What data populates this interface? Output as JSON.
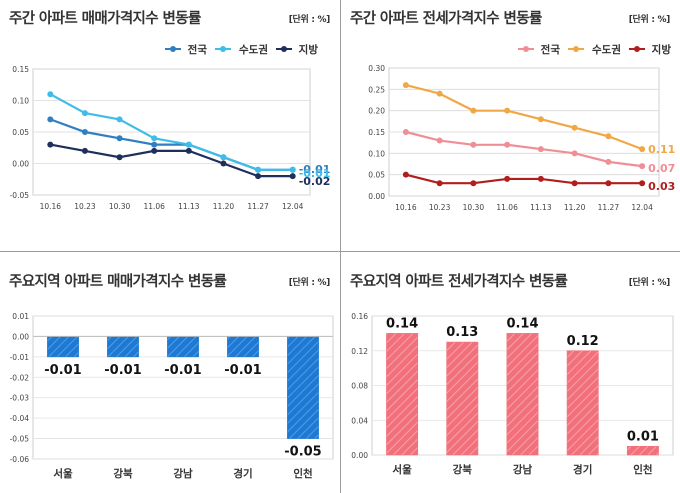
{
  "panels": [
    {
      "title": "주간 아파트 매매가격지수 변동률",
      "unit": "[단위 : %]"
    },
    {
      "title": "주간 아파트 전세가격지수 변동률",
      "unit": "[단위 : %]"
    },
    {
      "title": "주요지역 아파트 매매가격지수 변동률",
      "unit": "[단위 : %]"
    },
    {
      "title": "주요지역 아파트 전세가격지수 변동률",
      "unit": "[단위 : %]"
    }
  ],
  "chart_data": [
    {
      "type": "line",
      "title": "주간 아파트 매매가격지수 변동률",
      "x": [
        "10.16",
        "10.23",
        "10.30",
        "11.06",
        "11.13",
        "11.20",
        "11.27",
        "12.04"
      ],
      "ylim": [
        -0.05,
        0.15
      ],
      "yticks": [
        "0.15",
        "0.10",
        "0.05",
        "0.00",
        "-0.05"
      ],
      "yticks_num": [
        0.15,
        0.1,
        0.05,
        0.0,
        -0.05
      ],
      "series": [
        {
          "name": "전국",
          "color": "#2f7fc1",
          "values": [
            0.07,
            0.05,
            0.04,
            0.03,
            0.03,
            0.01,
            -0.01,
            -0.01
          ]
        },
        {
          "name": "수도권",
          "color": "#3fbde8",
          "values": [
            0.11,
            0.08,
            0.07,
            0.04,
            0.03,
            0.01,
            -0.01,
            -0.01
          ]
        },
        {
          "name": "지방",
          "color": "#1e2f5c",
          "values": [
            0.03,
            0.02,
            0.01,
            0.02,
            0.02,
            0.0,
            -0.02,
            -0.02
          ]
        }
      ],
      "end_labels": [
        "-0.01",
        "-0.01",
        "-0.02"
      ]
    },
    {
      "type": "line",
      "title": "주간 아파트 전세가격지수 변동률",
      "x": [
        "10.16",
        "10.23",
        "10.30",
        "11.06",
        "11.13",
        "11.20",
        "11.27",
        "12.04"
      ],
      "ylim": [
        0,
        0.3
      ],
      "yticks": [
        "0.30",
        "0.25",
        "0.20",
        "0.15",
        "0.10",
        "0.05",
        "0.00"
      ],
      "yticks_num": [
        0.3,
        0.25,
        0.2,
        0.15,
        0.1,
        0.05,
        0.0
      ],
      "series": [
        {
          "name": "전국",
          "color": "#f08e96",
          "values": [
            0.15,
            0.13,
            0.12,
            0.12,
            0.11,
            0.1,
            0.08,
            0.07
          ]
        },
        {
          "name": "수도권",
          "color": "#f0a845",
          "values": [
            0.26,
            0.24,
            0.2,
            0.2,
            0.18,
            0.16,
            0.14,
            0.11
          ]
        },
        {
          "name": "지방",
          "color": "#b01e1e",
          "values": [
            0.05,
            0.03,
            0.03,
            0.04,
            0.04,
            0.03,
            0.03,
            0.03
          ]
        }
      ],
      "end_labels": [
        "0.07",
        "0.11",
        "0.03"
      ]
    },
    {
      "type": "bar",
      "title": "주요지역 아파트 매매가격지수 변동률",
      "categories": [
        "서울",
        "강북",
        "강남",
        "경기",
        "인천"
      ],
      "values": [
        -0.01,
        -0.01,
        -0.01,
        -0.01,
        -0.05
      ],
      "value_labels": [
        "-0.01",
        "-0.01",
        "-0.01",
        "-0.01",
        "-0.05"
      ],
      "ylim": [
        -0.06,
        0.01
      ],
      "yticks": [
        "0.01",
        "0.00",
        "-0.01",
        "-0.02",
        "-0.03",
        "-0.04",
        "-0.05",
        "-0.06"
      ],
      "yticks_num": [
        0.01,
        0.0,
        -0.01,
        -0.02,
        -0.03,
        -0.04,
        -0.05,
        -0.06
      ],
      "color": "#1f78d1"
    },
    {
      "type": "bar",
      "title": "주요지역 아파트 전세가격지수 변동률",
      "categories": [
        "서울",
        "강북",
        "강남",
        "경기",
        "인천"
      ],
      "values": [
        0.14,
        0.13,
        0.14,
        0.12,
        0.01
      ],
      "value_labels": [
        "0.14",
        "0.13",
        "0.14",
        "0.12",
        "0.01"
      ],
      "ylim": [
        0,
        0.16
      ],
      "yticks": [
        "0.16",
        "0.12",
        "0.08",
        "0.04",
        "0.00"
      ],
      "yticks_num": [
        0.16,
        0.12,
        0.08,
        0.04,
        0.0
      ],
      "color": "#f2707b"
    }
  ]
}
